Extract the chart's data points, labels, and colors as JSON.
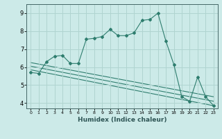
{
  "xlabel": "Humidex (Indice chaleur)",
  "ylabel": "",
  "bg_color": "#cceae8",
  "grid_color": "#b0d4d0",
  "line_color": "#2e7d6e",
  "xlim": [
    -0.5,
    23.5
  ],
  "ylim": [
    3.7,
    9.5
  ],
  "xticks": [
    0,
    1,
    2,
    3,
    4,
    5,
    6,
    7,
    8,
    9,
    10,
    11,
    12,
    13,
    14,
    15,
    16,
    17,
    18,
    19,
    20,
    21,
    22,
    23
  ],
  "yticks": [
    4,
    5,
    6,
    7,
    8,
    9
  ],
  "curve1_x": [
    0,
    1,
    2,
    3,
    4,
    5,
    6,
    7,
    8,
    9,
    10,
    11,
    12,
    13,
    14,
    15,
    16,
    17,
    18,
    19,
    20,
    21,
    22,
    23
  ],
  "curve1_y": [
    5.7,
    5.65,
    6.3,
    6.6,
    6.65,
    6.2,
    6.2,
    7.55,
    7.6,
    7.7,
    8.1,
    7.75,
    7.75,
    7.9,
    8.6,
    8.65,
    9.0,
    7.45,
    6.15,
    4.35,
    4.1,
    5.45,
    4.35,
    3.85
  ],
  "line2_x": [
    0,
    23
  ],
  "line2_y": [
    6.05,
    4.1
  ],
  "line3_x": [
    0,
    23
  ],
  "line3_y": [
    5.85,
    3.85
  ],
  "line4_x": [
    0,
    23
  ],
  "line4_y": [
    6.25,
    4.35
  ]
}
